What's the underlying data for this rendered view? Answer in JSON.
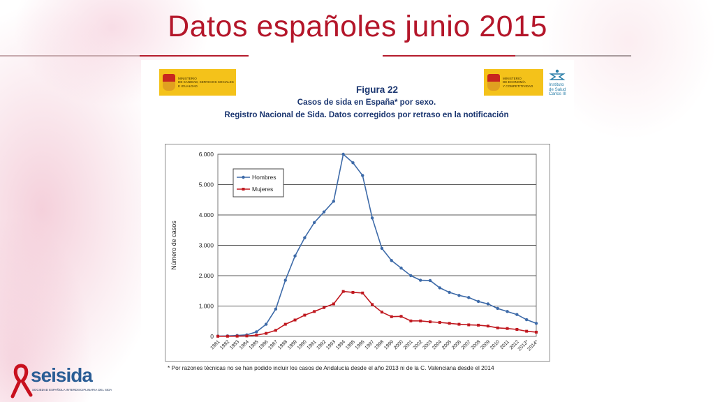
{
  "slide": {
    "title": "Datos españoles junio 2015"
  },
  "logos": {
    "left_ministry": "MINISTERIO\nDE SANIDAD, SERVICIOS SOCIALES\nE IGUALDAD",
    "right_ministry": "MINISTERIO\nDE ECONOMÍA\nY COMPETITIVIDAD",
    "isciii": "Instituto\nde Salud\nCarlos III",
    "seisida_word": "seisida",
    "seisida_sub": "SOCIEDAD ESPAÑOLA INTERDISCIPLINARIA DEL SIDA"
  },
  "figure": {
    "label": "Figura 22",
    "subtitle1": "Casos de sida en España* por sexo.",
    "subtitle2": "Registro Nacional de Sida. Datos corregidos por retraso en la notificación",
    "footnote": "* Por razones técnicas no se han podido incluir los casos de Andalucía desde el año 2013 ni de la C. Valenciana desde el 2014"
  },
  "colors": {
    "title": "#b4162a",
    "hombres": "#3d6aa8",
    "mujeres": "#c0181f"
  },
  "chart_data": {
    "type": "line",
    "title": "Casos de sida en España* por sexo.",
    "xlabel": "",
    "ylabel": "Número de casos",
    "ylim": [
      0,
      6000
    ],
    "yticks": [
      "0",
      "1.000",
      "2.000",
      "3.000",
      "4.000",
      "5.000",
      "6.000"
    ],
    "ytick_values": [
      0,
      1000,
      2000,
      3000,
      4000,
      5000,
      6000
    ],
    "grid": true,
    "legend_position": "top-left",
    "categories": [
      "1981",
      "1982",
      "1983",
      "1984",
      "1985",
      "1986",
      "1987",
      "1988",
      "1989",
      "1990",
      "1991",
      "1992",
      "1993",
      "1994",
      "1995",
      "1996",
      "1997",
      "1998",
      "1999",
      "2000",
      "2001",
      "2002",
      "2003",
      "2004",
      "2005",
      "2006",
      "2007",
      "2008",
      "2009",
      "2010",
      "2011",
      "2012",
      "2013*",
      "2014*"
    ],
    "series": [
      {
        "name": "Hombres",
        "values": [
          10,
          15,
          30,
          50,
          150,
          400,
          900,
          1850,
          2650,
          3250,
          3750,
          4100,
          4450,
          6000,
          5720,
          5300,
          3900,
          2900,
          2500,
          2250,
          2000,
          1850,
          1840,
          1600,
          1450,
          1350,
          1280,
          1150,
          1070,
          920,
          820,
          720,
          550,
          430
        ]
      },
      {
        "name": "Mujeres",
        "values": [
          5,
          5,
          8,
          15,
          40,
          100,
          200,
          400,
          540,
          700,
          820,
          950,
          1070,
          1480,
          1450,
          1430,
          1050,
          800,
          650,
          660,
          510,
          510,
          480,
          460,
          430,
          400,
          380,
          370,
          340,
          280,
          260,
          230,
          170,
          140
        ]
      }
    ]
  }
}
